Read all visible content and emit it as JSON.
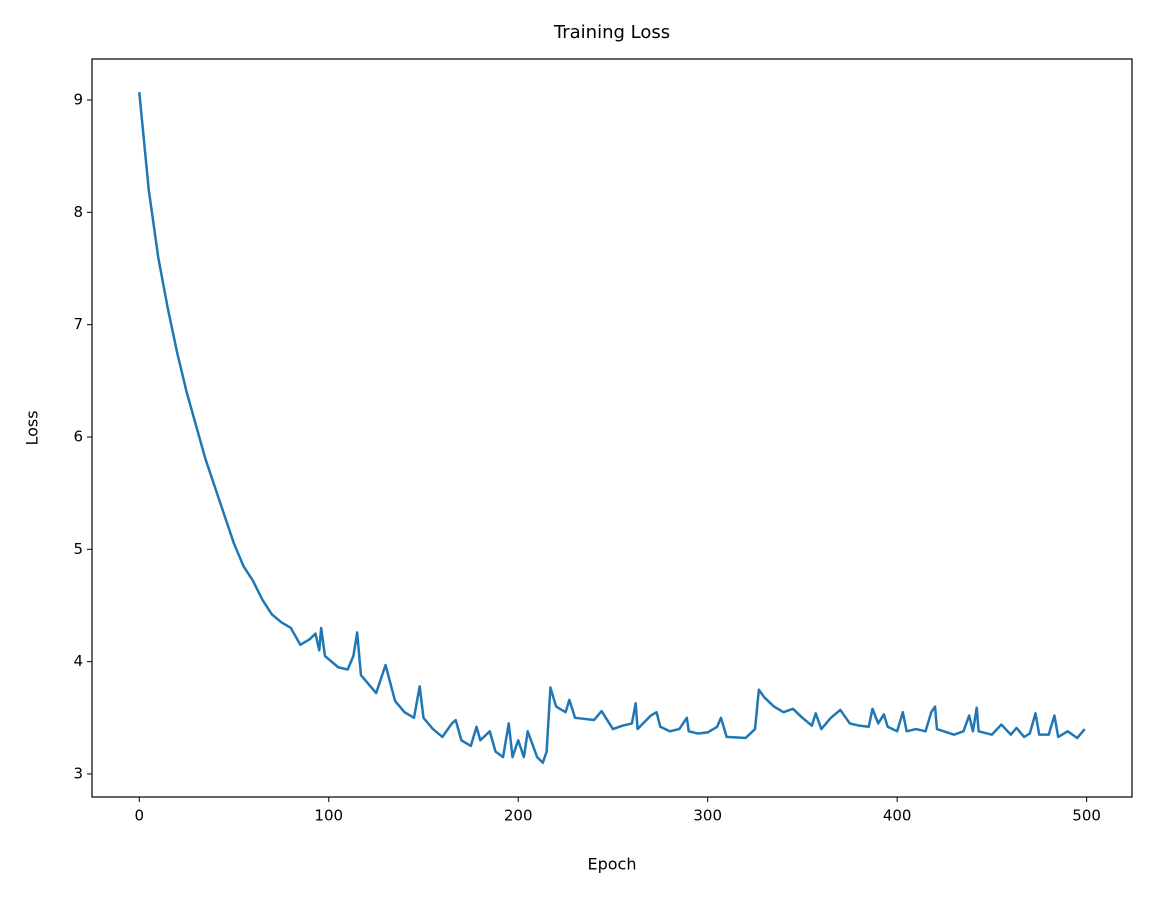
{
  "chart_data": {
    "type": "line",
    "title": "Training Loss",
    "x_label": "Epoch",
    "y_label": "Loss",
    "series": [
      {
        "name": "Loss",
        "color": "#1f77b4",
        "x": [
          0,
          5,
          10,
          15,
          20,
          25,
          30,
          35,
          40,
          45,
          50,
          55,
          60,
          65,
          70,
          75,
          80,
          85,
          90,
          93,
          95,
          96,
          98,
          105,
          110,
          113,
          115,
          117,
          120,
          125,
          130,
          135,
          140,
          145,
          148,
          150,
          155,
          160,
          165,
          167,
          170,
          175,
          178,
          180,
          185,
          188,
          192,
          195,
          197,
          200,
          203,
          205,
          210,
          213,
          215,
          217,
          220,
          225,
          227,
          230,
          240,
          244,
          250,
          255,
          260,
          262,
          263,
          270,
          273,
          275,
          280,
          285,
          289,
          290,
          295,
          300,
          305,
          307,
          310,
          320,
          325,
          327,
          330,
          335,
          340,
          345,
          350,
          355,
          357,
          360,
          365,
          370,
          375,
          380,
          385,
          387,
          390,
          393,
          395,
          400,
          403,
          405,
          410,
          415,
          418,
          420,
          421,
          430,
          435,
          438,
          440,
          442,
          443,
          450,
          455,
          460,
          463,
          467,
          470,
          473,
          475,
          480,
          483,
          485,
          490,
          495,
          499
        ],
        "values": [
          9.07,
          8.2,
          7.6,
          7.15,
          6.75,
          6.4,
          6.1,
          5.8,
          5.55,
          5.3,
          5.05,
          4.85,
          4.72,
          4.55,
          4.42,
          4.35,
          4.3,
          4.15,
          4.2,
          4.25,
          4.1,
          4.3,
          4.05,
          3.95,
          3.93,
          4.05,
          4.26,
          3.88,
          3.82,
          3.72,
          3.97,
          3.65,
          3.55,
          3.5,
          3.78,
          3.5,
          3.4,
          3.33,
          3.45,
          3.48,
          3.3,
          3.25,
          3.42,
          3.3,
          3.38,
          3.2,
          3.15,
          3.45,
          3.15,
          3.3,
          3.15,
          3.38,
          3.15,
          3.1,
          3.2,
          3.77,
          3.6,
          3.55,
          3.66,
          3.5,
          3.48,
          3.56,
          3.4,
          3.43,
          3.45,
          3.63,
          3.4,
          3.52,
          3.55,
          3.42,
          3.38,
          3.4,
          3.5,
          3.38,
          3.36,
          3.37,
          3.42,
          3.5,
          3.33,
          3.32,
          3.4,
          3.75,
          3.68,
          3.6,
          3.55,
          3.58,
          3.5,
          3.43,
          3.54,
          3.4,
          3.5,
          3.57,
          3.45,
          3.43,
          3.42,
          3.58,
          3.45,
          3.53,
          3.42,
          3.38,
          3.55,
          3.38,
          3.4,
          3.38,
          3.55,
          3.6,
          3.4,
          3.35,
          3.38,
          3.52,
          3.38,
          3.59,
          3.38,
          3.35,
          3.44,
          3.35,
          3.41,
          3.33,
          3.36,
          3.54,
          3.35,
          3.35,
          3.52,
          3.33,
          3.38,
          3.32,
          3.4
        ]
      }
    ],
    "xlim": [
      -24.95,
      523.95
    ],
    "ylim": [
      2.795,
      9.365
    ],
    "xticks": [
      0,
      100,
      200,
      300,
      400,
      500
    ],
    "yticks": [
      3,
      4,
      5,
      6,
      7,
      8,
      9
    ],
    "grid": false
  }
}
